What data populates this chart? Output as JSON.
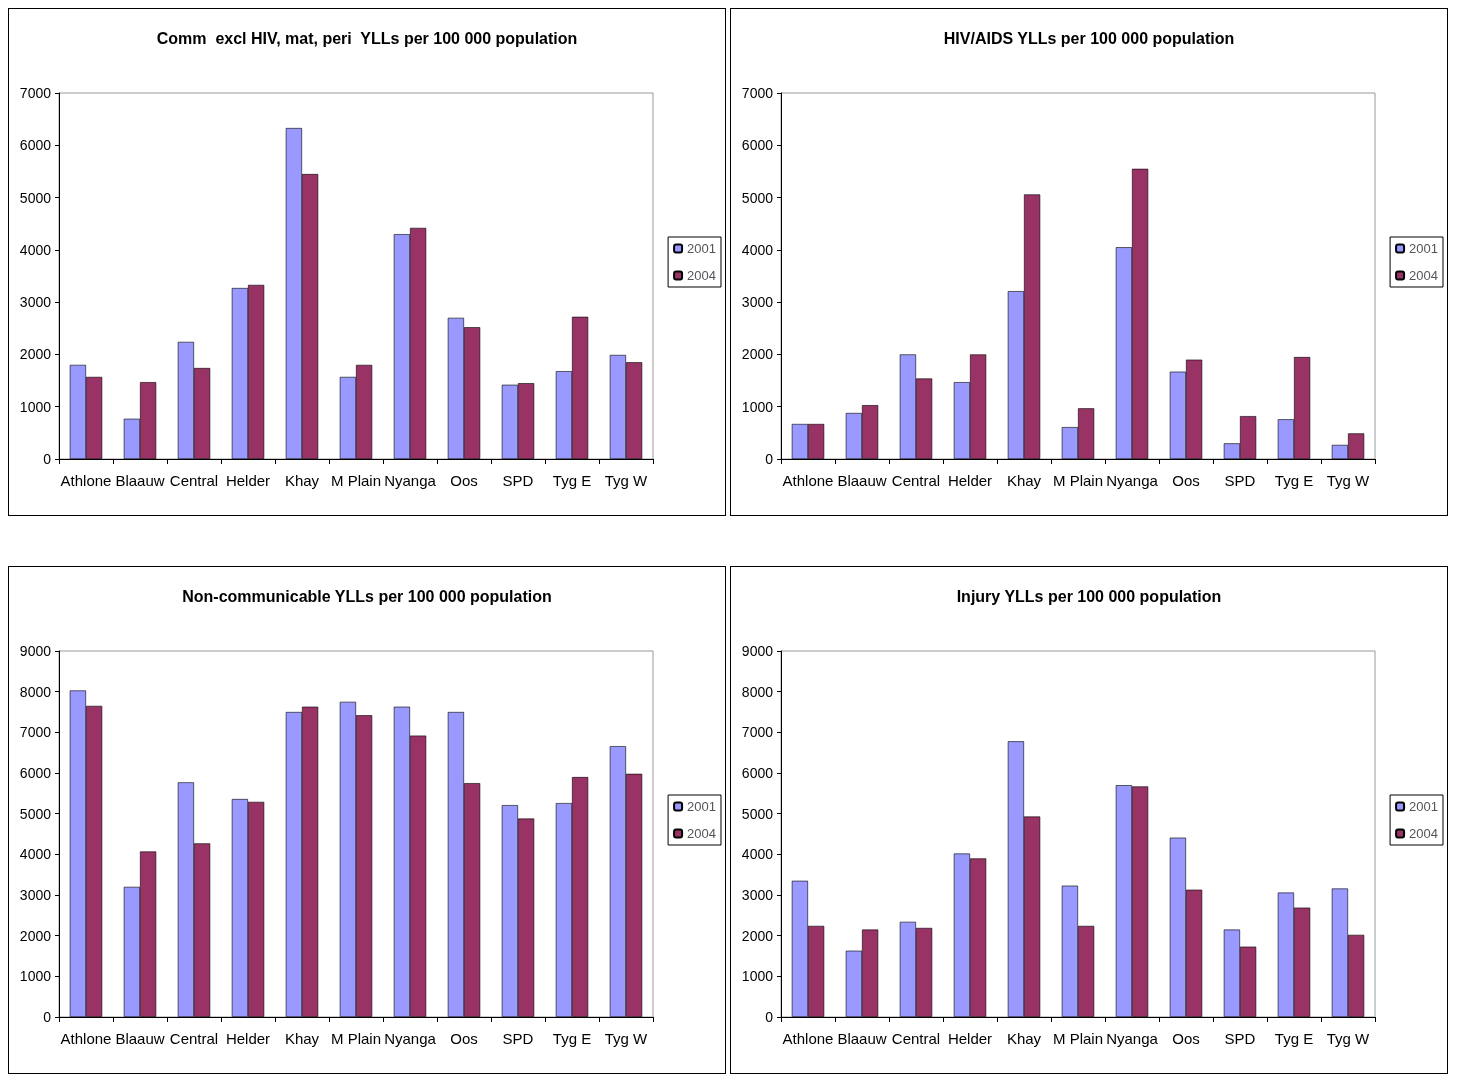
{
  "chart_data": [
    {
      "type": "bar",
      "title": "Comm  excl HIV, mat, peri  YLLs per 100 000 population",
      "categories": [
        "Athlone",
        "Blaauw",
        "Central",
        "Helder",
        "Khay",
        "M Plain",
        "Nyanga",
        "Oos",
        "SPD",
        "Tyg E",
        "Tyg W"
      ],
      "series": [
        {
          "name": "2001",
          "color": "#9999ff",
          "values": [
            1800,
            770,
            2240,
            3270,
            6330,
            1570,
            4300,
            2700,
            1420,
            1680,
            1990
          ]
        },
        {
          "name": "2004",
          "color": "#993366",
          "values": [
            1570,
            1470,
            1740,
            3330,
            5450,
            1800,
            4420,
            2520,
            1450,
            2720,
            1850
          ]
        }
      ],
      "ylim": [
        0,
        7000
      ],
      "yticks": [
        0,
        1000,
        2000,
        3000,
        4000,
        5000,
        6000,
        7000
      ],
      "grid": false,
      "legend": "right"
    },
    {
      "type": "bar",
      "title": "HIV/AIDS YLLs per 100 000 population",
      "categories": [
        "Athlone",
        "Blaauw",
        "Central",
        "Helder",
        "Khay",
        "M Plain",
        "Nyanga",
        "Oos",
        "SPD",
        "Tyg E",
        "Tyg W"
      ],
      "series": [
        {
          "name": "2001",
          "color": "#9999ff",
          "values": [
            670,
            880,
            2000,
            1470,
            3210,
            610,
            4050,
            1670,
            300,
            760,
            270
          ]
        },
        {
          "name": "2004",
          "color": "#993366",
          "values": [
            670,
            1030,
            1540,
            2000,
            5060,
            970,
            5550,
            1900,
            820,
            1950,
            490
          ]
        }
      ],
      "ylim": [
        0,
        7000
      ],
      "yticks": [
        0,
        1000,
        2000,
        3000,
        4000,
        5000,
        6000,
        7000
      ],
      "grid": false,
      "legend": "right"
    },
    {
      "type": "bar",
      "title": "Non-communicable YLLs per 100 000 population",
      "categories": [
        "Athlone",
        "Blaauw",
        "Central",
        "Helder",
        "Khay",
        "M Plain",
        "Nyanga",
        "Oos",
        "SPD",
        "Tyg E",
        "Tyg W"
      ],
      "series": [
        {
          "name": "2001",
          "color": "#9999ff",
          "values": [
            8030,
            3200,
            5770,
            5360,
            7500,
            7750,
            7630,
            7500,
            5210,
            5260,
            6660
          ]
        },
        {
          "name": "2004",
          "color": "#993366",
          "values": [
            7650,
            4070,
            4270,
            5290,
            7630,
            7420,
            6920,
            5750,
            4880,
            5900,
            5980
          ]
        }
      ],
      "ylim": [
        0,
        9000
      ],
      "yticks": [
        0,
        1000,
        2000,
        3000,
        4000,
        5000,
        6000,
        7000,
        8000,
        9000
      ],
      "grid": false,
      "legend": "right"
    },
    {
      "type": "bar",
      "title": "Injury YLLs per 100 000 population",
      "categories": [
        "Athlone",
        "Blaauw",
        "Central",
        "Helder",
        "Khay",
        "M Plain",
        "Nyanga",
        "Oos",
        "SPD",
        "Tyg E",
        "Tyg W"
      ],
      "series": [
        {
          "name": "2001",
          "color": "#9999ff",
          "values": [
            3350,
            1630,
            2340,
            4020,
            6780,
            3230,
            5700,
            4410,
            2150,
            3060,
            3160
          ]
        },
        {
          "name": "2004",
          "color": "#993366",
          "values": [
            2240,
            2150,
            2190,
            3900,
            4930,
            2240,
            5670,
            3130,
            1730,
            2690,
            2020
          ]
        }
      ],
      "ylim": [
        0,
        9000
      ],
      "yticks": [
        0,
        1000,
        2000,
        3000,
        4000,
        5000,
        6000,
        7000,
        8000,
        9000
      ],
      "grid": false,
      "legend": "right"
    }
  ]
}
